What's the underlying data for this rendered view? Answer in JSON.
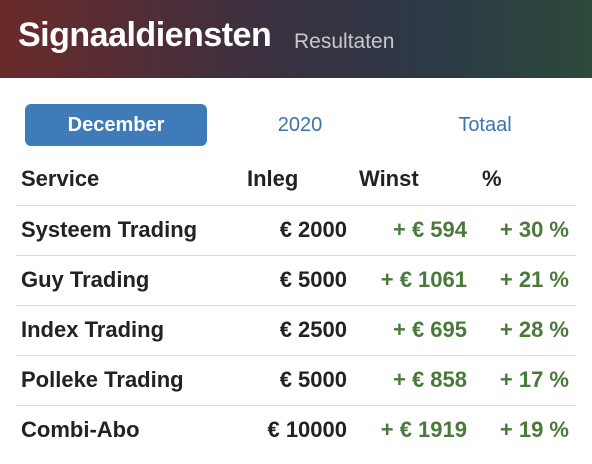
{
  "header": {
    "title": "Signaaldiensten",
    "subtitle": "Resultaten"
  },
  "tabs": [
    "December",
    "2020",
    "Totaal"
  ],
  "table": {
    "columns": [
      "Service",
      "Inleg",
      "Winst",
      "%"
    ],
    "rows": [
      [
        "Systeem Trading",
        "€ 2000",
        "+ € 594",
        "+ 30 %"
      ],
      [
        "Guy Trading",
        "€ 5000",
        "+ € 1061",
        "+ 21 %"
      ],
      [
        "Index Trading",
        "€ 2500",
        "+ € 695",
        "+ 28 %"
      ],
      [
        "Polleke Trading",
        "€ 5000",
        "+ € 858",
        "+ 17 %"
      ],
      [
        "Combi-Abo",
        "€ 10000",
        "+ € 1919",
        "+ 19 %"
      ]
    ]
  }
}
